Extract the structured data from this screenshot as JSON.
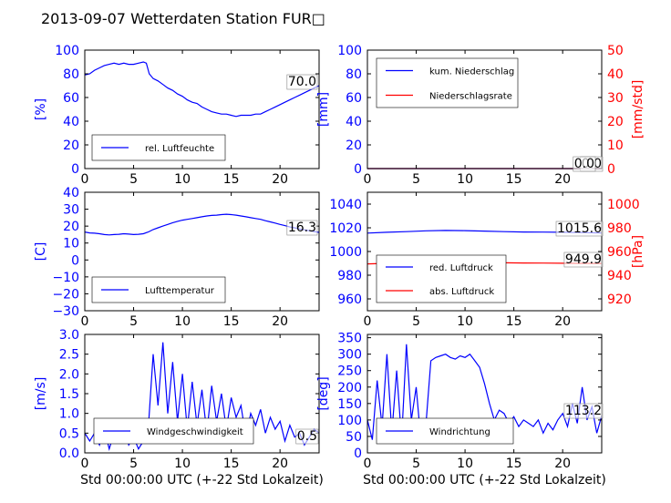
{
  "title": "2013-09-07 Wetterdaten Station FUR□",
  "colors": {
    "primary": "#0000ff",
    "secondary": "#ff0000",
    "axis": "#000000"
  },
  "chart_data": [
    {
      "id": "humidity",
      "type": "line",
      "ylabel": "[%]",
      "ylim": [
        0,
        100
      ],
      "yticks": [
        "0",
        "20",
        "40",
        "60",
        "80",
        "100"
      ],
      "xlim": [
        0,
        24
      ],
      "xticks": [
        "0",
        "5",
        "10",
        "15",
        "20"
      ],
      "legend_placement": "lower-left",
      "annotation": "70.0",
      "series": [
        {
          "name": "rel. Luftfeuchte",
          "color": "#0000ff",
          "x": [
            0,
            0.5,
            1,
            1.5,
            2,
            2.5,
            3,
            3.5,
            4,
            4.5,
            5,
            5.5,
            6,
            6.3,
            6.6,
            7,
            7.5,
            8,
            8.5,
            9,
            9.5,
            10,
            10.5,
            11,
            11.5,
            12,
            12.5,
            13,
            13.5,
            14,
            14.5,
            15,
            15.5,
            16,
            16.5,
            17,
            17.5,
            18,
            18.5,
            19,
            19.5,
            20,
            20.5,
            21,
            21.5,
            22,
            22.5,
            23,
            23.5,
            24
          ],
          "y": [
            79,
            80,
            83,
            85,
            87,
            88,
            89,
            88,
            89,
            88,
            88,
            89,
            90,
            89,
            80,
            76,
            74,
            71,
            68,
            66,
            63,
            61,
            58,
            56,
            55,
            52,
            50,
            48,
            47,
            46,
            46,
            45,
            44,
            45,
            45,
            45,
            46,
            46,
            48,
            50,
            52,
            54,
            56,
            58,
            60,
            62,
            64,
            66,
            68,
            70
          ]
        }
      ]
    },
    {
      "id": "precip",
      "type": "line",
      "ylabel": "[mm]",
      "ylim": [
        0,
        100
      ],
      "yticks": [
        "0",
        "20",
        "40",
        "60",
        "80",
        "100"
      ],
      "y2label": "[mm/std]",
      "y2lim": [
        0,
        50
      ],
      "y2ticks": [
        "0",
        "10",
        "20",
        "30",
        "40",
        "50"
      ],
      "xlim": [
        0,
        24
      ],
      "xticks": [
        "0",
        "5",
        "10",
        "15",
        "20"
      ],
      "legend_placement": "upper-left",
      "annotations": [
        "0.0",
        "0.0"
      ],
      "series": [
        {
          "name": "kum. Niederschlag",
          "color": "#0000ff",
          "axis": "left",
          "x": [
            0,
            24
          ],
          "y": [
            0,
            0
          ]
        },
        {
          "name": "Niederschlagsrate",
          "color": "#ff0000",
          "axis": "right",
          "x": [
            0,
            24
          ],
          "y": [
            0,
            0
          ]
        }
      ]
    },
    {
      "id": "temperature",
      "type": "line",
      "ylabel": "[C]",
      "ylim": [
        -30,
        40
      ],
      "yticks": [
        "−30",
        "−20",
        "−10",
        "0",
        "10",
        "20",
        "30",
        "40"
      ],
      "xlim": [
        0,
        24
      ],
      "xticks": [
        "0",
        "5",
        "10",
        "15",
        "20"
      ],
      "legend_placement": "lower-left",
      "annotation": "16.3",
      "series": [
        {
          "name": "Lufttemperatur",
          "color": "#0000ff",
          "x": [
            0,
            0.5,
            1,
            1.5,
            2,
            2.5,
            3,
            3.5,
            4,
            4.5,
            5,
            5.5,
            6,
            6.5,
            7,
            7.5,
            8,
            8.5,
            9,
            9.5,
            10,
            10.5,
            11,
            11.5,
            12,
            12.5,
            13,
            13.5,
            14,
            14.5,
            15,
            15.5,
            16,
            16.5,
            17,
            17.5,
            18,
            18.5,
            19,
            19.5,
            20,
            20.5,
            21,
            21.5,
            22,
            22.5,
            23,
            23.5,
            24
          ],
          "y": [
            16.5,
            16,
            15.8,
            15.5,
            15,
            14.8,
            15,
            15.2,
            15.5,
            15.3,
            15,
            15.2,
            15.5,
            16.5,
            18,
            19,
            20,
            21,
            22,
            22.8,
            23.5,
            24,
            24.5,
            25,
            25.5,
            26,
            26.3,
            26.5,
            26.8,
            27,
            26.8,
            26.5,
            26,
            25.5,
            25,
            24.5,
            24,
            23.2,
            22.5,
            21.8,
            21,
            20.3,
            19.5,
            19,
            18.3,
            17.8,
            17.3,
            16.8,
            16.3
          ]
        }
      ]
    },
    {
      "id": "pressure",
      "type": "line",
      "ylim": [
        950,
        1050
      ],
      "yticks": [
        "960",
        "980",
        "1000",
        "1020",
        "1040"
      ],
      "y2label": "[hPa]",
      "y2lim": [
        910,
        1010
      ],
      "y2ticks": [
        "920",
        "940",
        "960",
        "980",
        "1000"
      ],
      "xlim": [
        0,
        24
      ],
      "xticks": [
        "0",
        "5",
        "10",
        "15",
        "20"
      ],
      "legend_placement": "lower-left",
      "annotations": [
        "1015.6",
        "949.9"
      ],
      "series": [
        {
          "name": "red. Luftdruck",
          "color": "#0000ff",
          "axis": "left",
          "x": [
            0,
            2,
            4,
            6,
            8,
            10,
            12,
            14,
            16,
            18,
            20,
            22,
            24
          ],
          "y": [
            1015.5,
            1016.2,
            1016.8,
            1017.5,
            1017.8,
            1017.6,
            1017.2,
            1016.8,
            1016.5,
            1016.4,
            1016.2,
            1016,
            1015.6
          ]
        },
        {
          "name": "abs. Luftdruck",
          "color": "#ff0000",
          "axis": "right",
          "x": [
            0,
            2,
            4,
            6,
            8,
            10,
            12,
            14,
            16,
            18,
            20,
            22,
            24
          ],
          "y": [
            949.5,
            950,
            950.5,
            951,
            951.2,
            951,
            950.8,
            950.5,
            950.3,
            950.2,
            950.1,
            950,
            949.9
          ]
        }
      ]
    },
    {
      "id": "wind-speed",
      "type": "line",
      "ylabel": "[m/s]",
      "xlabel": "Std 00:00:00 UTC (+-22 Std Lokalzeit)",
      "ylim": [
        0,
        3
      ],
      "yticks": [
        "0.0",
        "0.5",
        "1.0",
        "1.5",
        "2.0",
        "2.5",
        "3.0"
      ],
      "xlim": [
        0,
        24
      ],
      "xticks": [
        "0",
        "5",
        "10",
        "15",
        "20"
      ],
      "legend_placement": "lower-center",
      "annotation": "0.5",
      "series": [
        {
          "name": "Windgeschwindigkeit",
          "color": "#0000ff",
          "x": [
            0,
            0.5,
            1,
            1.5,
            2,
            2.5,
            3,
            3.5,
            4,
            4.5,
            5,
            5.5,
            6,
            6.5,
            7,
            7.5,
            8,
            8.5,
            9,
            9.5,
            10,
            10.5,
            11,
            11.5,
            12,
            12.5,
            13,
            13.5,
            14,
            14.5,
            15,
            15.5,
            16,
            16.5,
            17,
            17.5,
            18,
            18.5,
            19,
            19.5,
            20,
            20.5,
            21,
            21.5,
            22,
            22.5,
            23,
            23.5,
            24
          ],
          "y": [
            0.5,
            0.3,
            0.5,
            0.2,
            0.6,
            0.1,
            0.5,
            0.3,
            0.7,
            0.2,
            0.4,
            0.1,
            0.3,
            0.6,
            2.5,
            1.2,
            2.8,
            1.0,
            2.3,
            0.8,
            2.0,
            0.6,
            1.8,
            0.7,
            1.6,
            0.5,
            1.7,
            0.8,
            1.5,
            0.6,
            1.4,
            0.9,
            1.2,
            0.4,
            1.0,
            0.7,
            1.1,
            0.5,
            0.9,
            0.6,
            0.8,
            0.3,
            0.7,
            0.4,
            0.5,
            0.2,
            0.4,
            0.6,
            0.5
          ]
        }
      ]
    },
    {
      "id": "wind-direction",
      "type": "line",
      "ylabel": "[deg]",
      "xlabel": "Std 00:00:00 UTC (+-22 Std Lokalzeit)",
      "ylim": [
        0,
        360
      ],
      "yticks": [
        "0",
        "50",
        "100",
        "150",
        "200",
        "250",
        "300",
        "350"
      ],
      "xlim": [
        0,
        24
      ],
      "xticks": [
        "0",
        "5",
        "10",
        "15",
        "20"
      ],
      "legend_placement": "lower-left",
      "annotation": "113.2",
      "series": [
        {
          "name": "Windrichtung",
          "color": "#0000ff",
          "x": [
            0,
            0.5,
            1,
            1.5,
            2,
            2.5,
            3,
            3.5,
            4,
            4.5,
            5,
            5.5,
            6,
            6.5,
            7,
            7.5,
            8,
            8.5,
            9,
            9.5,
            10,
            10.5,
            11,
            11.5,
            12,
            12.5,
            13,
            13.5,
            14,
            14.5,
            15,
            15.5,
            16,
            16.5,
            17,
            17.5,
            18,
            18.5,
            19,
            19.5,
            20,
            20.5,
            21,
            21.5,
            22,
            22.5,
            23,
            23.5,
            24
          ],
          "y": [
            100,
            40,
            220,
            80,
            300,
            60,
            250,
            40,
            330,
            100,
            200,
            30,
            90,
            280,
            290,
            295,
            300,
            290,
            285,
            295,
            290,
            300,
            280,
            260,
            210,
            150,
            100,
            130,
            120,
            90,
            110,
            80,
            100,
            90,
            80,
            100,
            60,
            90,
            70,
            100,
            120,
            80,
            150,
            90,
            200,
            100,
            140,
            60,
            113
          ]
        }
      ]
    }
  ]
}
